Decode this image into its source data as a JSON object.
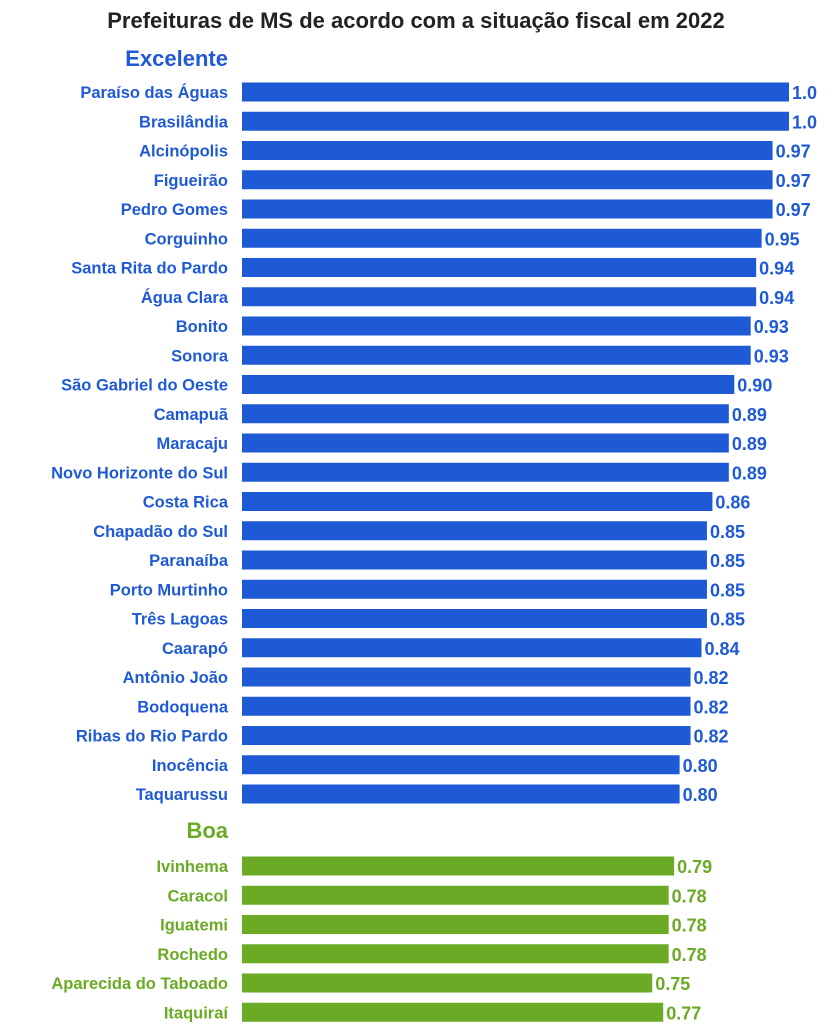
{
  "chart_data": {
    "type": "bar",
    "orientation": "horizontal",
    "title": "Prefeituras de MS de acordo com a situação fiscal em 2022",
    "colors": {
      "Excelente": "#1f5ad6",
      "Boa": "#6aaa24",
      "title": "#222222"
    },
    "groups": [
      {
        "name": "Excelente",
        "color": "#1f5ad6",
        "categories": [
          "Paraíso das Águas",
          "Brasilândia",
          "Alcinópolis",
          "Figueirão",
          "Pedro Gomes",
          "Corguinho",
          "Santa Rita do Pardo",
          "Água Clara",
          "Bonito",
          "Sonora",
          "São Gabriel do Oeste",
          "Camapuã",
          "Maracaju",
          "Novo Horizonte do Sul",
          "Costa Rica",
          "Chapadão do Sul",
          "Paranaíba",
          "Porto Murtinho",
          "Três Lagoas",
          "Caarapó",
          "Antônio João",
          "Bodoquena",
          "Ribas do Rio Pardo",
          "Inocência",
          "Taquarussu"
        ],
        "values": [
          1.0,
          1.0,
          0.97,
          0.97,
          0.97,
          0.95,
          0.94,
          0.94,
          0.93,
          0.93,
          0.9,
          0.89,
          0.89,
          0.89,
          0.86,
          0.85,
          0.85,
          0.85,
          0.85,
          0.84,
          0.82,
          0.82,
          0.82,
          0.8,
          0.8
        ],
        "value_labels": [
          "1.0",
          "1.0",
          "0.97",
          "0.97",
          "0.97",
          "0.95",
          "0.94",
          "0.94",
          "0.93",
          "0.93",
          "0.90",
          "0.89",
          "0.89",
          "0.89",
          "0.86",
          "0.85",
          "0.85",
          "0.85",
          "0.85",
          "0.84",
          "0.82",
          "0.82",
          "0.82",
          "0.80",
          "0.80"
        ]
      },
      {
        "name": "Boa",
        "color": "#6aaa24",
        "categories": [
          "Ivinhema",
          "Caracol",
          "Iguatemi",
          "Rochedo",
          "Aparecida do Taboado",
          "Itaquiraí"
        ],
        "values": [
          0.79,
          0.78,
          0.78,
          0.78,
          0.75,
          0.77
        ],
        "value_labels": [
          "0.79",
          "0.78",
          "0.78",
          "0.78",
          "0.75",
          "0.77"
        ]
      }
    ],
    "xlim": [
      0,
      1.0
    ],
    "grid": false,
    "legend": "none"
  }
}
